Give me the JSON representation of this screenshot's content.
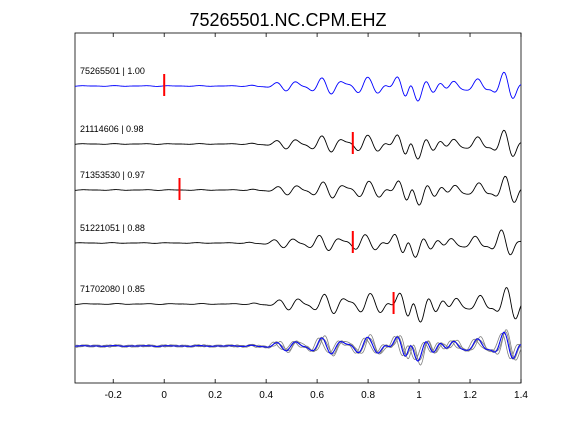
{
  "figure": {
    "title": "75265501.NC.CPM.EHZ"
  },
  "chart_data": {
    "type": "line",
    "title": "75265501.NC.CPM.EHZ",
    "xlabel": "",
    "ylabel": "",
    "xlim": [
      -0.35,
      1.4
    ],
    "x_ticks": [
      -0.2,
      0,
      0.2,
      0.4,
      0.6,
      0.8,
      1,
      1.2,
      1.4
    ],
    "x_tick_labels": [
      "-0.2",
      "0",
      "0.2",
      "0.4",
      "0.6",
      "0.8",
      "1",
      "1.2",
      "1.4"
    ],
    "grid": false,
    "traces": [
      {
        "label": "75265501 | 1.00",
        "color": "#0000ff",
        "pick_time": 0.0,
        "shift": 0.0,
        "amp": 1.0
      },
      {
        "label": "21114606 | 0.98",
        "color": "#000000",
        "pick_time": 0.74,
        "shift": 0.0,
        "amp": 1.0
      },
      {
        "label": "71353530 | 0.97",
        "color": "#000000",
        "pick_time": 0.06,
        "shift": 0.005,
        "amp": 1.0
      },
      {
        "label": "51221051 | 0.88",
        "color": "#000000",
        "pick_time": 0.74,
        "shift": -0.01,
        "amp": 0.95
      },
      {
        "label": "71702080 | 0.85",
        "color": "#000000",
        "pick_time": 0.9,
        "shift": 0.01,
        "amp": 1.2
      }
    ],
    "stack": {
      "overlay_color": "#808080",
      "reference_color": "#0000ff"
    },
    "pick_color": "#ff0000"
  }
}
